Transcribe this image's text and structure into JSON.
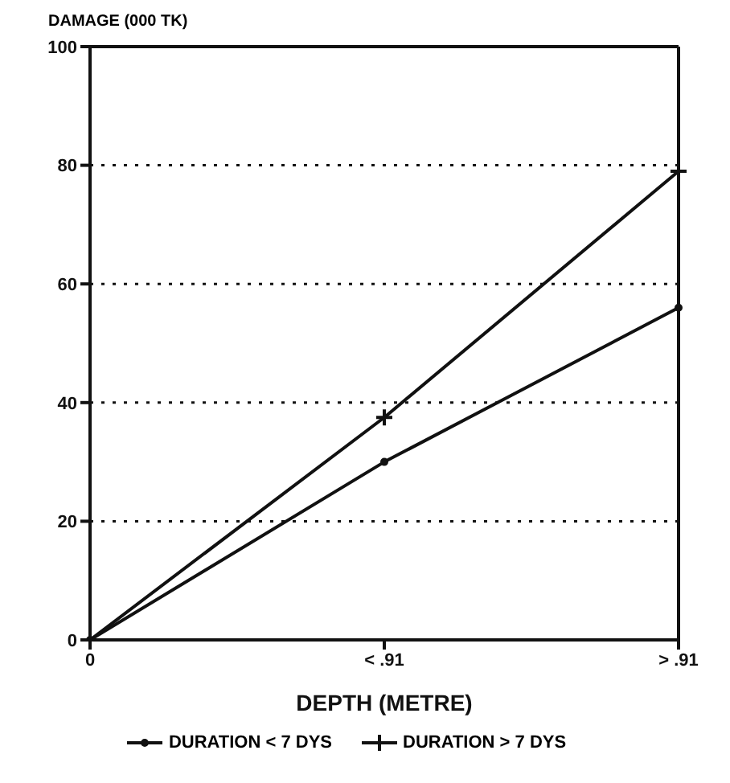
{
  "chart_data": {
    "type": "line",
    "xlabel": "DEPTH (METRE)",
    "ylabel": "DAMAGE (000 TK)",
    "categories": [
      "0",
      "< .91",
      "> .91"
    ],
    "series": [
      {
        "name": "DURATION < 7 DYS",
        "color": "#111111",
        "values": [
          0,
          30,
          56
        ],
        "marker": "circle"
      },
      {
        "name": "DURATION > 7 DYS",
        "color": "#111111",
        "values": [
          0,
          37.5,
          79
        ],
        "marker": "cross"
      }
    ],
    "ylim": [
      0,
      100
    ],
    "yticks": [
      0,
      20,
      40,
      60,
      80,
      100
    ],
    "grid": "y",
    "legend": "bottom",
    "line_style": "solid"
  }
}
